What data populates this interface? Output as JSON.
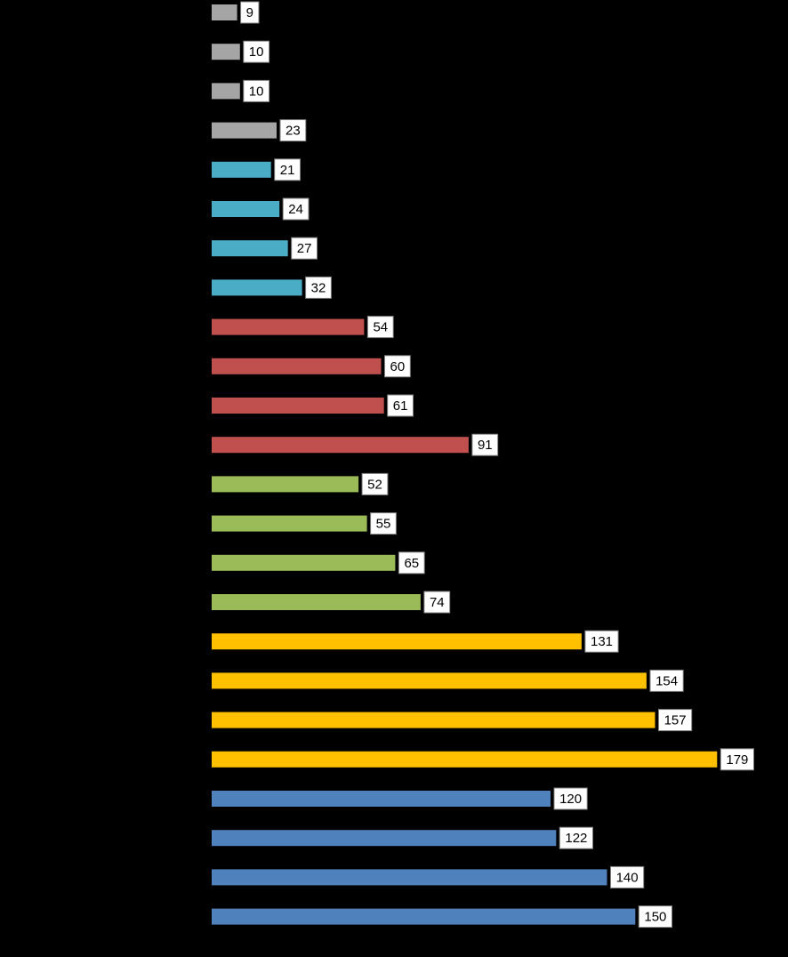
{
  "chart_data": {
    "type": "bar",
    "orientation": "horizontal",
    "background": "#000000",
    "grid": false,
    "legend": "none",
    "label_box": {
      "fill": "#ffffff",
      "stroke": "#7f7f7f"
    },
    "bars": [
      {
        "value": 9,
        "color": "#a5a5a5"
      },
      {
        "value": 10,
        "color": "#a5a5a5"
      },
      {
        "value": 10,
        "color": "#a5a5a5"
      },
      {
        "value": 23,
        "color": "#a5a5a5"
      },
      {
        "value": 21,
        "color": "#4bacc6"
      },
      {
        "value": 24,
        "color": "#4bacc6"
      },
      {
        "value": 27,
        "color": "#4bacc6"
      },
      {
        "value": 32,
        "color": "#4bacc6"
      },
      {
        "value": 54,
        "color": "#c0504d"
      },
      {
        "value": 60,
        "color": "#c0504d"
      },
      {
        "value": 61,
        "color": "#c0504d"
      },
      {
        "value": 91,
        "color": "#c0504d"
      },
      {
        "value": 52,
        "color": "#9bbb59"
      },
      {
        "value": 55,
        "color": "#9bbb59"
      },
      {
        "value": 65,
        "color": "#9bbb59"
      },
      {
        "value": 74,
        "color": "#9bbb59"
      },
      {
        "value": 131,
        "color": "#ffc000"
      },
      {
        "value": 154,
        "color": "#ffc000"
      },
      {
        "value": 157,
        "color": "#ffc000"
      },
      {
        "value": 179,
        "color": "#ffc000"
      },
      {
        "value": 120,
        "color": "#4f81bd"
      },
      {
        "value": 122,
        "color": "#4f81bd"
      },
      {
        "value": 140,
        "color": "#4f81bd"
      },
      {
        "value": 150,
        "color": "#4f81bd"
      }
    ],
    "xlim": [
      0,
      180
    ]
  }
}
